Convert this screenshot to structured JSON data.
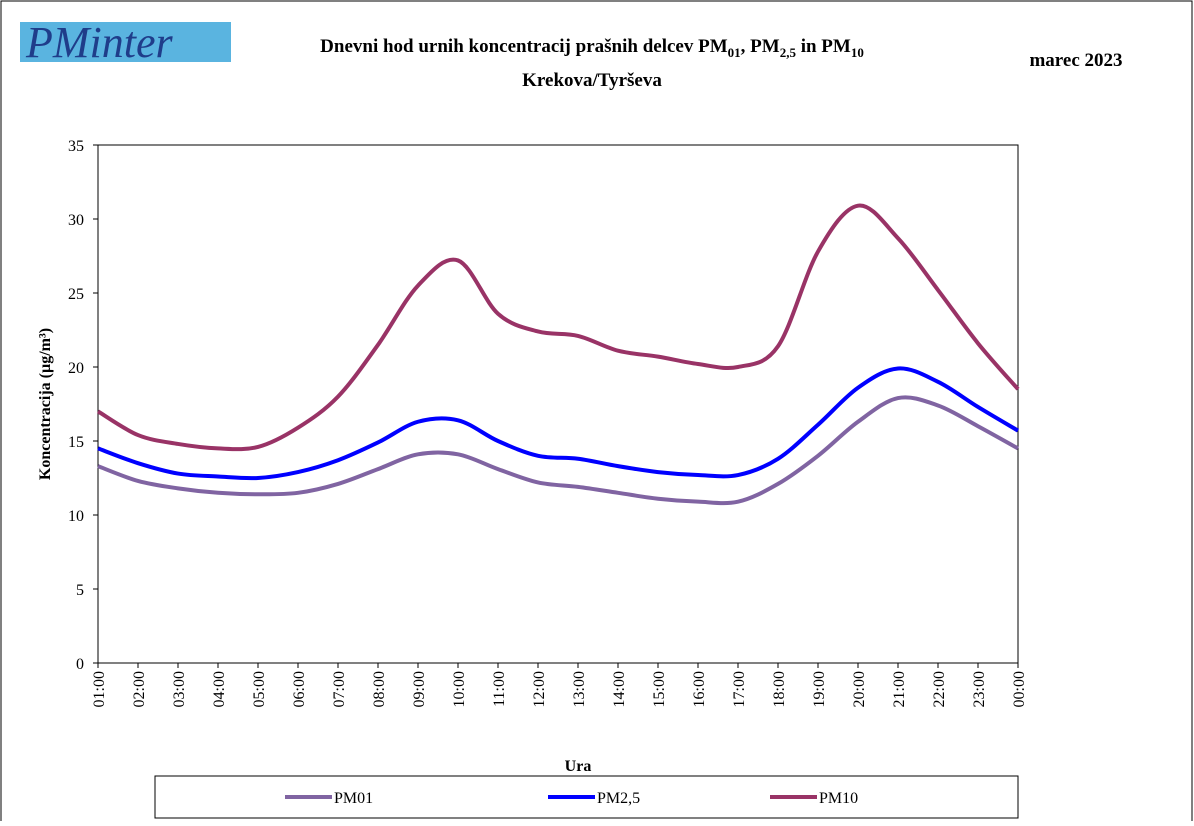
{
  "logo": "PMinter",
  "chart_data": {
    "type": "line",
    "title": [
      "Dnevni hod urnih koncentracij prašnih delcev PM",
      "01",
      ", PM",
      "2,5",
      " in PM",
      "10"
    ],
    "subtitle": "Krekova/Tyrševa",
    "date": "marec 2023",
    "x_label": "Ura",
    "y_label": "Koncentracija (µg/m³)",
    "categories": [
      "01:00",
      "02:00",
      "03:00",
      "04:00",
      "05:00",
      "06:00",
      "07:00",
      "08:00",
      "09:00",
      "10:00",
      "11:00",
      "12:00",
      "13:00",
      "14:00",
      "15:00",
      "16:00",
      "17:00",
      "18:00",
      "19:00",
      "20:00",
      "21:00",
      "22:00",
      "23:00",
      "00:00"
    ],
    "series": [
      {
        "name": "PM01",
        "color": "#8064a2",
        "values": [
          13.3,
          12.3,
          11.8,
          11.5,
          11.4,
          11.5,
          12.1,
          13.1,
          14.1,
          14.1,
          13.1,
          12.2,
          11.9,
          11.5,
          11.1,
          10.9,
          10.9,
          12.1,
          14.0,
          16.3,
          17.9,
          17.4,
          16.0,
          14.5
        ]
      },
      {
        "name": "PM2,5",
        "color": "#0000ff",
        "values": [
          14.5,
          13.5,
          12.8,
          12.6,
          12.5,
          12.9,
          13.7,
          14.9,
          16.3,
          16.4,
          15.0,
          14.0,
          13.8,
          13.3,
          12.9,
          12.7,
          12.7,
          13.8,
          16.1,
          18.6,
          19.9,
          19.0,
          17.3,
          15.7
        ]
      },
      {
        "name": "PM10",
        "color": "#993366",
        "values": [
          17.0,
          15.4,
          14.8,
          14.5,
          14.6,
          15.9,
          18.0,
          21.5,
          25.5,
          27.2,
          23.6,
          22.4,
          22.1,
          21.1,
          20.7,
          20.2,
          20.0,
          21.4,
          27.8,
          30.9,
          28.7,
          25.2,
          21.6,
          18.5
        ]
      }
    ],
    "ylim": [
      0,
      35
    ],
    "yticks": [
      0,
      5,
      10,
      15,
      20,
      25,
      30,
      35
    ],
    "grid": false
  }
}
